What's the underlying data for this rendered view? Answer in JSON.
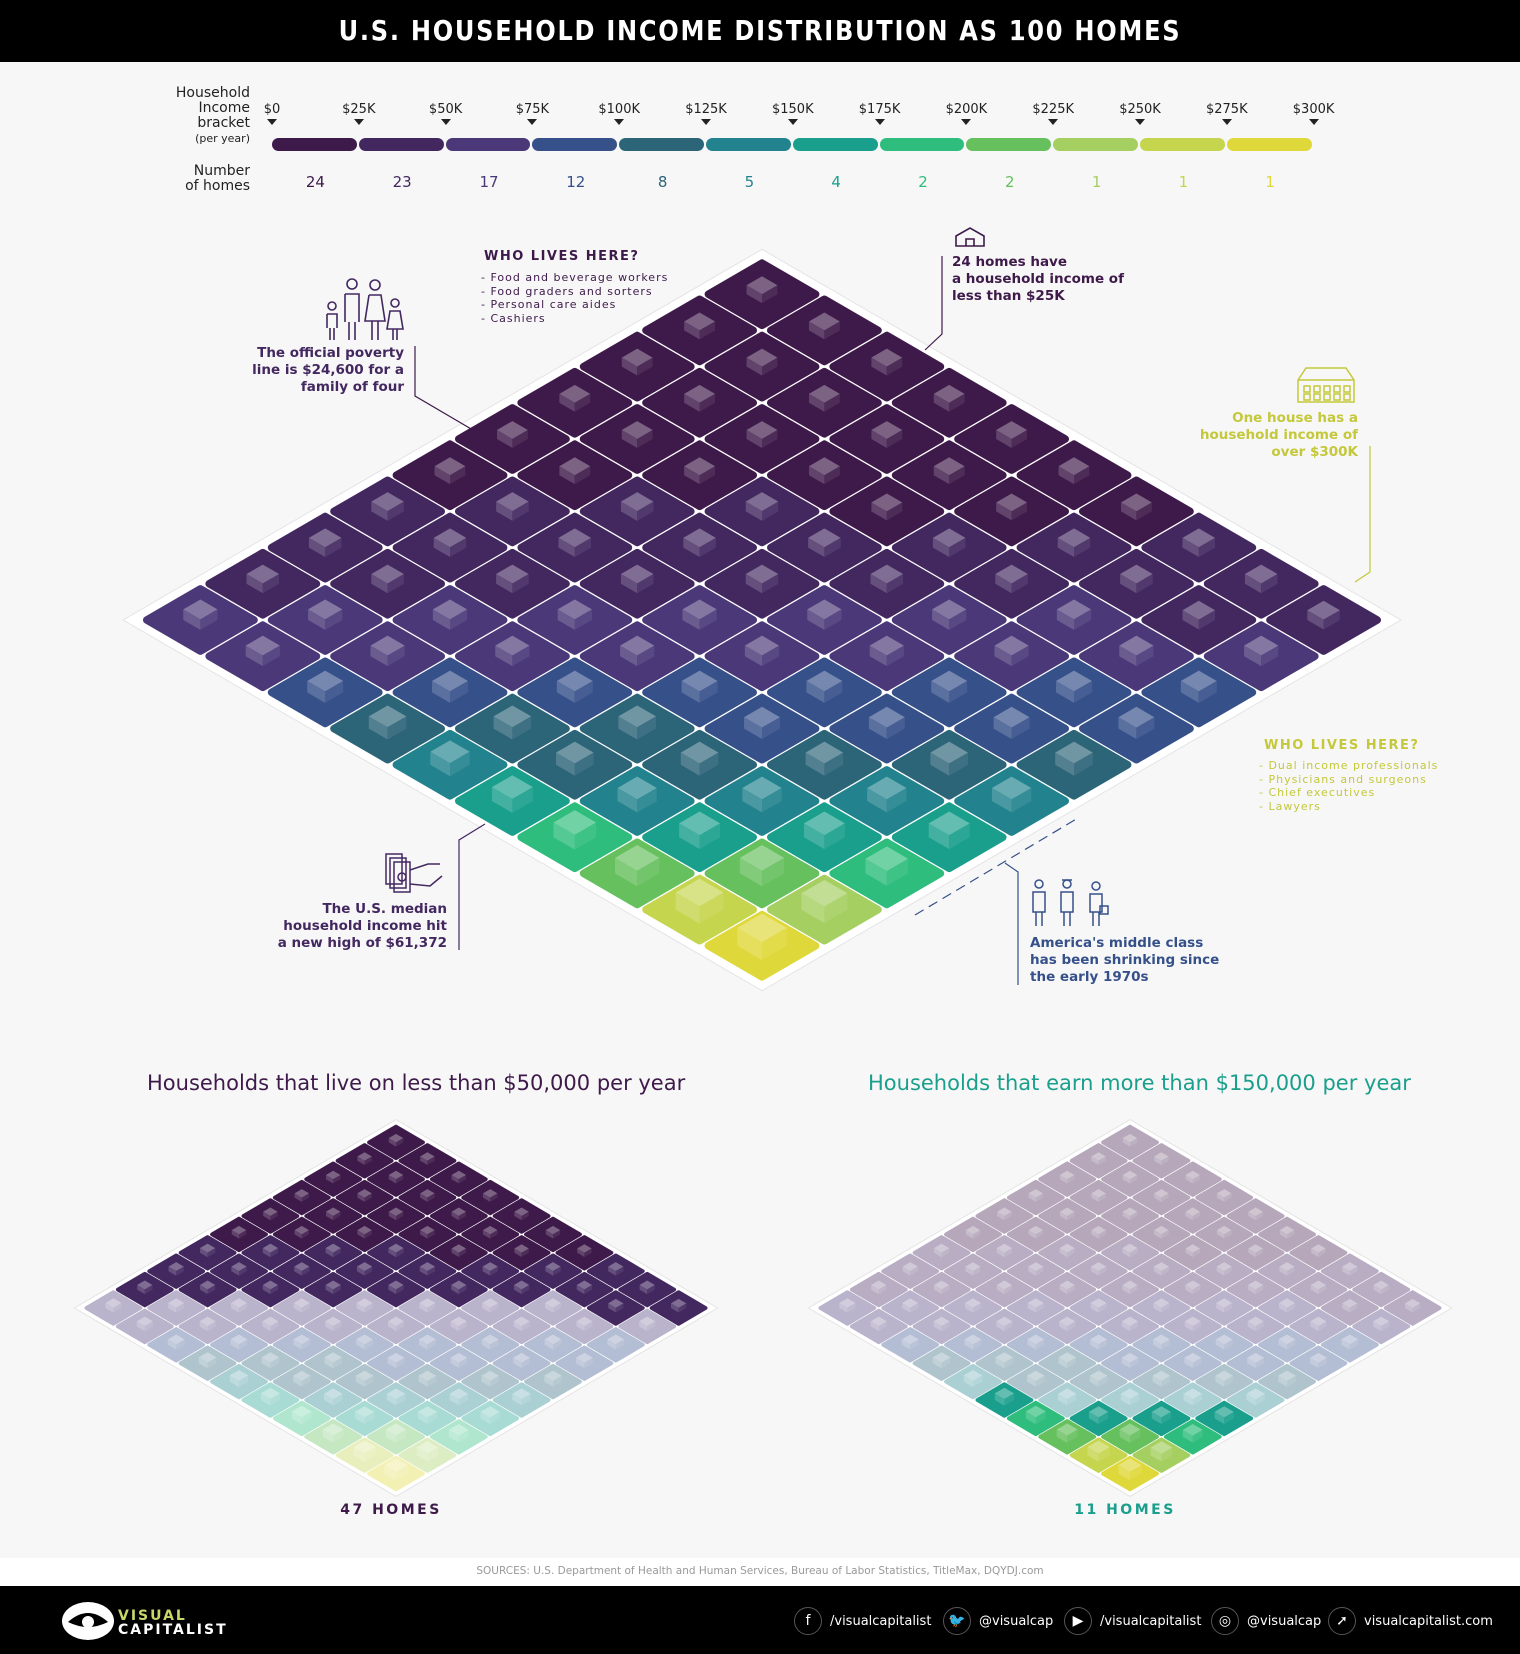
{
  "title": "U.S. HOUSEHOLD INCOME DISTRIBUTION AS 100 HOMES",
  "legend": {
    "bracket_label_1": "Household",
    "bracket_label_2": "Income",
    "bracket_label_3": "bracket",
    "bracket_label_4": "(per year)",
    "homes_label_1": "Number",
    "homes_label_2": "of homes"
  },
  "chart_data": {
    "type": "bar",
    "title": "U.S. HOUSEHOLD INCOME DISTRIBUTION AS 100 HOMES",
    "ticks": [
      "$0",
      "$25K",
      "$50K",
      "$75K",
      "$100K",
      "$125K",
      "$150K",
      "$175K",
      "$200K",
      "$225K",
      "$250K",
      "$275K",
      "$300K"
    ],
    "categories": [
      "$0-$25K",
      "$25K-$50K",
      "$50K-$75K",
      "$75K-$100K",
      "$100K-$125K",
      "$125K-$150K",
      "$150K-$175K",
      "$175K-$200K",
      "$200K-$225K",
      "$225K-$250K",
      "$250K-$275K",
      "$275K-$300K"
    ],
    "values": [
      24,
      23,
      17,
      12,
      8,
      5,
      4,
      2,
      2,
      1,
      1,
      1
    ],
    "colors": [
      "#3e1a4a",
      "#432860",
      "#4a3878",
      "#36508a",
      "#2c6478",
      "#22838e",
      "#1a9f8c",
      "#2ebd7c",
      "#66c05e",
      "#a6cf62",
      "#c6d54e",
      "#dfd83a"
    ]
  },
  "annotations": {
    "who_low_title": "WHO LIVES HERE?",
    "who_low_items": [
      "- Food and beverage workers",
      "- Food graders and sorters",
      "- Personal care aides",
      "- Cashiers"
    ],
    "homes24_1": "24 homes have",
    "homes24_2": "a household income of",
    "homes24_3": "less than $25K",
    "poverty_1": "The official poverty",
    "poverty_2": "line is $24,600 for a",
    "poverty_3": "family of four",
    "over300_1": "One house has a",
    "over300_2": "household income of",
    "over300_3": "over $300K",
    "who_high_title": "WHO LIVES HERE?",
    "who_high_items": [
      "- Dual income professionals",
      "- Physicians and surgeons",
      "- Chief executives",
      "- Lawyers"
    ],
    "median_1": "The U.S. median",
    "median_2": "household income hit",
    "median_3": "a new high of $61,372",
    "middle_1": "America's middle class",
    "middle_2": "has been shrinking since",
    "middle_3": "the early 1970s"
  },
  "sub_low": {
    "title": "Households that live on less than $50,000 per year",
    "count": "47 HOMES",
    "highlight_brackets": 2
  },
  "sub_high": {
    "title": "Households that earn more than $150,000 per year",
    "count": "11 HOMES",
    "highlight_from_bracket": 6
  },
  "sources": "SOURCES: U.S. Department of Health and Human Services, Bureau of Labor Statistics, TitleMax, DQYDJ.com",
  "footer": {
    "logo_1": "VISUAL",
    "logo_2": "CAPITALIST",
    "social": [
      {
        "icon": "facebook-icon",
        "glyph": "f",
        "label": "/visualcapitalist"
      },
      {
        "icon": "twitter-icon",
        "glyph": "🐦",
        "label": "@visualcap"
      },
      {
        "icon": "youtube-icon",
        "glyph": "▶",
        "label": "/visualcapitalist"
      },
      {
        "icon": "instagram-icon",
        "glyph": "◎",
        "label": "@visualcap"
      },
      {
        "icon": "cursor-icon",
        "glyph": "➚",
        "label": "visualcapitalist.com"
      }
    ]
  }
}
